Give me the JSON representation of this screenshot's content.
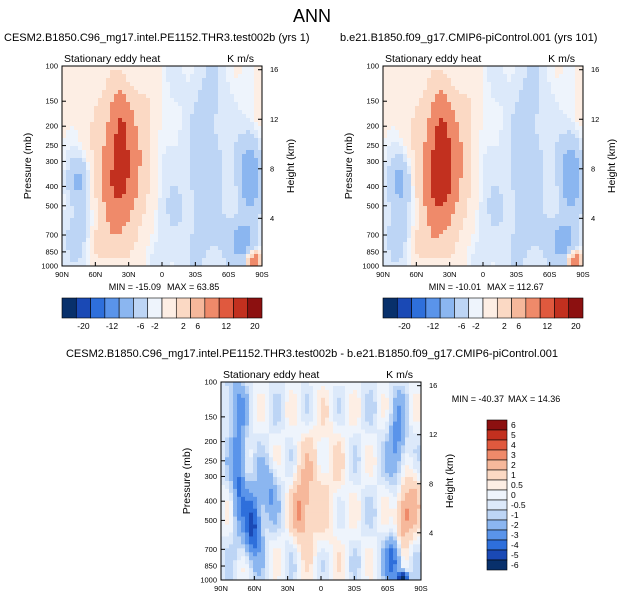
{
  "page_title": "ANN",
  "chart_data": [
    {
      "type": "heatmap",
      "panel": "top-left",
      "case_title": "CESM2.B1850.C96_mg17.intel.PE1152.THR3.test002b (yrs 1)",
      "title": "Stationary eddy heat",
      "units": "K m/s",
      "xlabel": "",
      "ylabel": "Pressure (mb)",
      "y2label": "Height (km)",
      "x_ticks": [
        "90N",
        "60N",
        "30N",
        "0",
        "30S",
        "60S",
        "90S"
      ],
      "y_ticks": [
        "100",
        "150",
        "200",
        "250",
        "300",
        "400",
        "500",
        "700",
        "850",
        "1000"
      ],
      "y2_ticks": [
        "16",
        "12",
        "8",
        "4"
      ],
      "min_text": "MIN = -15.09",
      "max_text": "MAX =  63.85",
      "min": -15.09,
      "max": 63.85,
      "colorbar_levels": [
        "-20",
        "-12",
        "-6",
        "-2",
        "2",
        "6",
        "12",
        "20"
      ]
    },
    {
      "type": "heatmap",
      "panel": "top-right",
      "case_title": "b.e21.B1850.f09_g17.CMIP6-piControl.001 (yrs 101)",
      "title": "Stationary eddy heat",
      "units": "K m/s",
      "xlabel": "",
      "ylabel": "Pressure (mb)",
      "y2label": "Height (km)",
      "x_ticks": [
        "90N",
        "60N",
        "30N",
        "0",
        "30S",
        "60S",
        "90S"
      ],
      "y_ticks": [
        "100",
        "150",
        "200",
        "250",
        "300",
        "400",
        "500",
        "700",
        "850",
        "1000"
      ],
      "y2_ticks": [
        "16",
        "12",
        "8",
        "4"
      ],
      "min_text": "MIN = -10.01",
      "max_text": "MAX = 112.67",
      "min": -10.01,
      "max": 112.67,
      "colorbar_levels": [
        "-20",
        "-12",
        "-6",
        "-2",
        "2",
        "6",
        "12",
        "20"
      ]
    },
    {
      "type": "heatmap",
      "panel": "bottom-difference",
      "case_title": "CESM2.B1850.C96_mg17.intel.PE1152.THR3.test002b - b.e21.B1850.f09_g17.CMIP6-piControl.001",
      "title": "Stationary eddy heat",
      "units": "K m/s",
      "xlabel": "",
      "ylabel": "Pressure (mb)",
      "y2label": "Height (km)",
      "x_ticks": [
        "90N",
        "60N",
        "30N",
        "0",
        "30S",
        "60S",
        "90S"
      ],
      "y_ticks": [
        "100",
        "150",
        "200",
        "250",
        "300",
        "400",
        "500",
        "700",
        "850",
        "1000"
      ],
      "y2_ticks": [
        "16",
        "12",
        "8",
        "4"
      ],
      "min_text": "MIN = -40.37",
      "max_text": "MAX =  14.36",
      "min": -40.37,
      "max": 14.36,
      "colorbar_levels": [
        "6",
        "5",
        "4",
        "3",
        "2",
        "1",
        "0.5",
        "0",
        "-0.5",
        "-1",
        "-2",
        "-3",
        "-4",
        "-5",
        "-6"
      ]
    }
  ],
  "colors": {
    "diverging": [
      "#08306b",
      "#1a49b5",
      "#2e6fdb",
      "#5a94ea",
      "#8bb6f0",
      "#bdd5f5",
      "#dce9fa",
      "#eef4fc",
      "#fdeee4",
      "#fbd9c4",
      "#f6b89b",
      "#ef8a6a",
      "#e0593e",
      "#c2301f",
      "#8c1010"
    ],
    "diff_scale": [
      "#8c1010",
      "#c2301f",
      "#e0593e",
      "#ef8a6a",
      "#f6b89b",
      "#fbd9c4",
      "#fdeee4",
      "#eef4fc",
      "#dce9fa",
      "#bdd5f5",
      "#8bb6f0",
      "#5a94ea",
      "#2e6fdb",
      "#1a49b5",
      "#08306b"
    ]
  }
}
